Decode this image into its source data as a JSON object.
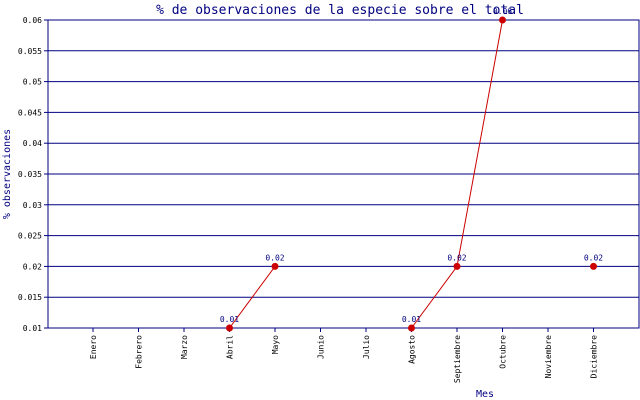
{
  "chart_data": {
    "type": "line",
    "title": "% de observaciones de la especie sobre el total",
    "xlabel": "Mes",
    "ylabel": "% observaciones",
    "categories": [
      "Enero",
      "Febrero",
      "Marzo",
      "Abril",
      "Mayo",
      "Junio",
      "Julio",
      "Agosto",
      "Septiembre",
      "Octubre",
      "Noviembre",
      "Diciembre"
    ],
    "ylim": [
      0.01,
      0.06
    ],
    "yticks": [
      "0.01",
      "0.015",
      "0.02",
      "0.025",
      "0.03",
      "0.035",
      "0.04",
      "0.045",
      "0.05",
      "0.055",
      "0.06"
    ],
    "grid": true,
    "series": [
      {
        "values": [
          null,
          null,
          null,
          0.01,
          0.02,
          null,
          null,
          0.01,
          0.02,
          0.06,
          null,
          0.02
        ],
        "labels": [
          null,
          null,
          null,
          "0.01",
          "0.02",
          null,
          null,
          "0.01",
          "0.02",
          "0.06",
          null,
          "0.02"
        ]
      }
    ],
    "colors": {
      "axis": "#000080",
      "grid": "#000080",
      "line": "#cc0000",
      "marker": "#cc0000",
      "tick_label": "#000000"
    }
  }
}
